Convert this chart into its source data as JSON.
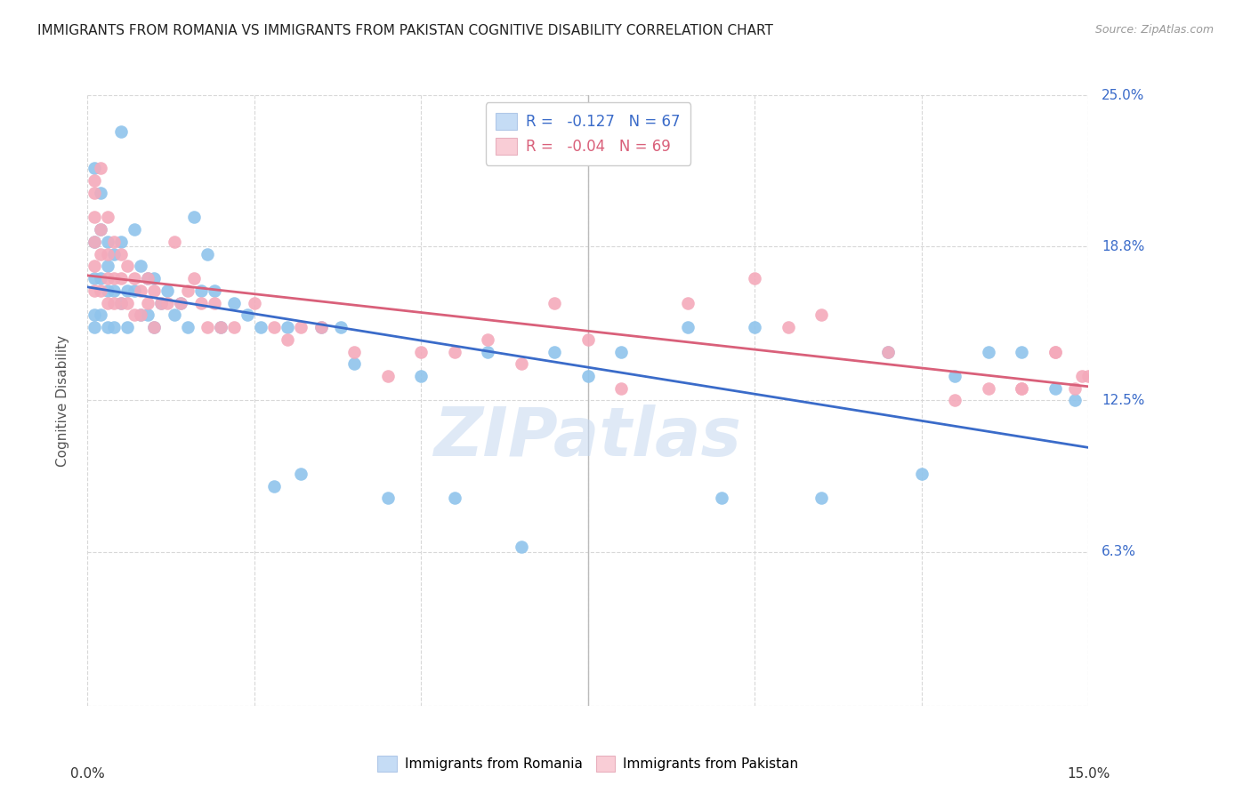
{
  "title": "IMMIGRANTS FROM ROMANIA VS IMMIGRANTS FROM PAKISTAN COGNITIVE DISABILITY CORRELATION CHART",
  "source": "Source: ZipAtlas.com",
  "ylabel": "Cognitive Disability",
  "xmin": 0.0,
  "xmax": 0.15,
  "ymin": 0.0,
  "ymax": 0.25,
  "R_romania": -0.127,
  "N_romania": 67,
  "R_pakistan": -0.04,
  "N_pakistan": 69,
  "color_romania": "#8FC4EC",
  "color_pakistan": "#F4AABB",
  "line_color_romania": "#3A6BC9",
  "line_color_pakistan": "#D9607A",
  "legend_box_color_romania": "#C5DCF5",
  "legend_box_color_pakistan": "#F9CDD6",
  "watermark": "ZIPatlas",
  "romania_x": [
    0.001,
    0.001,
    0.001,
    0.001,
    0.001,
    0.002,
    0.002,
    0.002,
    0.002,
    0.003,
    0.003,
    0.003,
    0.003,
    0.004,
    0.004,
    0.004,
    0.005,
    0.005,
    0.005,
    0.006,
    0.006,
    0.007,
    0.007,
    0.008,
    0.008,
    0.009,
    0.009,
    0.01,
    0.01,
    0.011,
    0.012,
    0.013,
    0.014,
    0.015,
    0.016,
    0.017,
    0.018,
    0.019,
    0.02,
    0.022,
    0.024,
    0.026,
    0.028,
    0.03,
    0.032,
    0.035,
    0.038,
    0.04,
    0.045,
    0.05,
    0.055,
    0.06,
    0.065,
    0.07,
    0.075,
    0.08,
    0.09,
    0.095,
    0.1,
    0.11,
    0.12,
    0.125,
    0.13,
    0.135,
    0.14,
    0.145,
    0.148
  ],
  "romania_y": [
    0.22,
    0.19,
    0.175,
    0.16,
    0.155,
    0.21,
    0.195,
    0.175,
    0.16,
    0.19,
    0.18,
    0.17,
    0.155,
    0.185,
    0.17,
    0.155,
    0.235,
    0.19,
    0.165,
    0.17,
    0.155,
    0.195,
    0.17,
    0.18,
    0.16,
    0.175,
    0.16,
    0.175,
    0.155,
    0.165,
    0.17,
    0.16,
    0.165,
    0.155,
    0.2,
    0.17,
    0.185,
    0.17,
    0.155,
    0.165,
    0.16,
    0.155,
    0.09,
    0.155,
    0.095,
    0.155,
    0.155,
    0.14,
    0.085,
    0.135,
    0.085,
    0.145,
    0.065,
    0.145,
    0.135,
    0.145,
    0.155,
    0.085,
    0.155,
    0.085,
    0.145,
    0.095,
    0.135,
    0.145,
    0.145,
    0.13,
    0.125
  ],
  "pakistan_x": [
    0.001,
    0.001,
    0.001,
    0.001,
    0.001,
    0.001,
    0.002,
    0.002,
    0.002,
    0.002,
    0.003,
    0.003,
    0.003,
    0.003,
    0.004,
    0.004,
    0.004,
    0.005,
    0.005,
    0.005,
    0.006,
    0.006,
    0.007,
    0.007,
    0.008,
    0.008,
    0.009,
    0.009,
    0.01,
    0.01,
    0.011,
    0.012,
    0.013,
    0.014,
    0.015,
    0.016,
    0.017,
    0.018,
    0.019,
    0.02,
    0.022,
    0.025,
    0.028,
    0.03,
    0.032,
    0.035,
    0.04,
    0.045,
    0.05,
    0.055,
    0.06,
    0.065,
    0.07,
    0.075,
    0.08,
    0.09,
    0.1,
    0.105,
    0.11,
    0.12,
    0.13,
    0.135,
    0.14,
    0.145,
    0.148,
    0.149,
    0.15,
    0.145,
    0.14
  ],
  "pakistan_y": [
    0.215,
    0.21,
    0.2,
    0.19,
    0.18,
    0.17,
    0.22,
    0.195,
    0.185,
    0.17,
    0.2,
    0.185,
    0.175,
    0.165,
    0.19,
    0.175,
    0.165,
    0.185,
    0.175,
    0.165,
    0.18,
    0.165,
    0.175,
    0.16,
    0.17,
    0.16,
    0.175,
    0.165,
    0.17,
    0.155,
    0.165,
    0.165,
    0.19,
    0.165,
    0.17,
    0.175,
    0.165,
    0.155,
    0.165,
    0.155,
    0.155,
    0.165,
    0.155,
    0.15,
    0.155,
    0.155,
    0.145,
    0.135,
    0.145,
    0.145,
    0.15,
    0.14,
    0.165,
    0.15,
    0.13,
    0.165,
    0.175,
    0.155,
    0.16,
    0.145,
    0.125,
    0.13,
    0.13,
    0.145,
    0.13,
    0.135,
    0.135,
    0.145,
    0.13
  ]
}
